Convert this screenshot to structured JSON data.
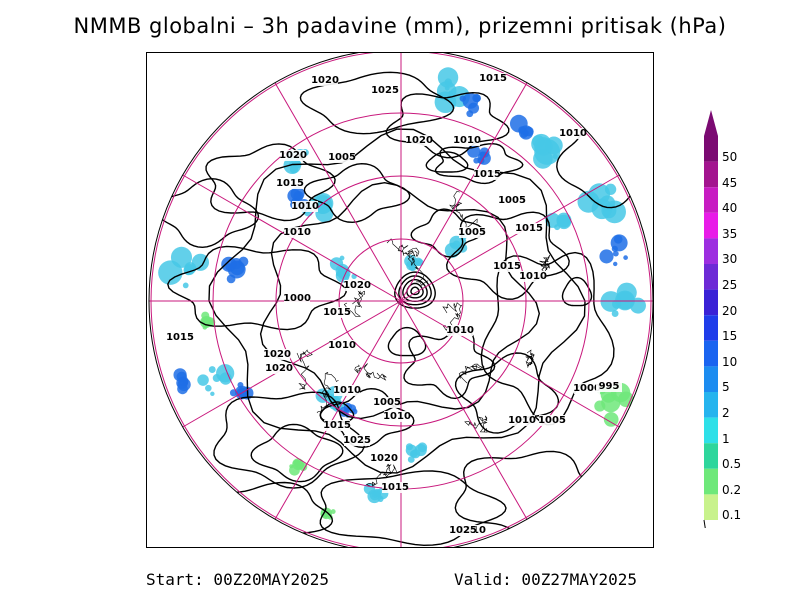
{
  "title": "NMMB globalni – 3h padavine (mm), prizemni pritisak (hPa)",
  "footer": {
    "start": "Start: 00Z20MAY2025",
    "valid": "Valid: 00Z27MAY2025"
  },
  "legend": {
    "levels": [
      "50",
      "45",
      "40",
      "35",
      "30",
      "25",
      "20",
      "15",
      "10",
      "5",
      "2",
      "1",
      "0.5",
      "0.2",
      "0.1"
    ],
    "colors": [
      "#7b0a72",
      "#a3148f",
      "#c71cc2",
      "#e81ce8",
      "#9d2ee0",
      "#6d2ad6",
      "#3a22d6",
      "#1f3dea",
      "#1a64f0",
      "#1c8cf0",
      "#26b4ee",
      "#2ee0e8",
      "#2ed69c",
      "#6ee87a",
      "#c8f28c"
    ]
  },
  "colors": {
    "contour": "#000000",
    "graticule": "#c8187c",
    "precip_light": "#46c8e6",
    "precip_mid": "#1e6ee6",
    "precip_green": "#6ee87a"
  },
  "pressure_labels": [
    "1020",
    "1025",
    "1015",
    "1010",
    "1020",
    "1005",
    "1015",
    "1010",
    "1020",
    "1015",
    "1010",
    "1005",
    "1005",
    "1015",
    "1010",
    "1010",
    "1000",
    "1015",
    "1010",
    "1020",
    "1015",
    "1015",
    "1010",
    "1020",
    "1020",
    "1010",
    "1005",
    "1025",
    "1015",
    "1010",
    "1010",
    "1005",
    "1000",
    "995",
    "1020",
    "1015",
    "1010",
    "1025"
  ]
}
